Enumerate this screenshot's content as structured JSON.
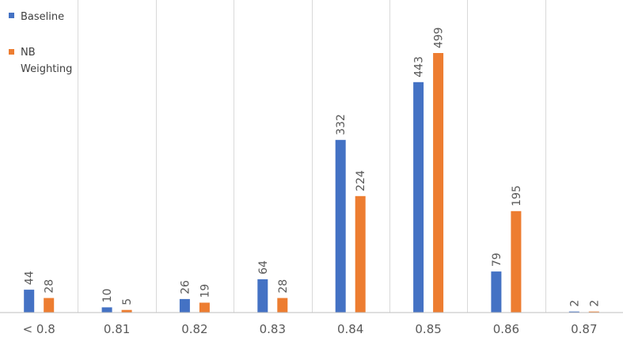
{
  "chart_data": {
    "type": "bar",
    "title": "",
    "xlabel": "",
    "ylabel": "",
    "categories": [
      "< 0.8",
      "0.81",
      "0.82",
      "0.83",
      "0.84",
      "0.85",
      "0.86",
      "0.87"
    ],
    "series": [
      {
        "name": "Baseline",
        "color": "#4472C4",
        "values": [
          44,
          10,
          26,
          64,
          332,
          443,
          79,
          2
        ]
      },
      {
        "name": "NB Weighting",
        "color": "#ED7D31",
        "values": [
          28,
          5,
          19,
          28,
          224,
          499,
          195,
          2
        ]
      }
    ],
    "ylim": [
      0,
      530
    ],
    "grid": {
      "vertical_category_separators": true,
      "horizontal": false
    },
    "legend": {
      "position": "top-left"
    },
    "data_labels": {
      "shown": true,
      "rotation": "vertical"
    }
  }
}
